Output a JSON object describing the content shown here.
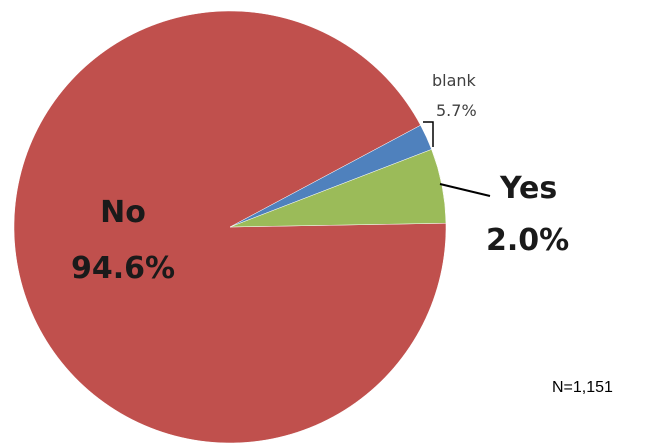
{
  "chart_data": {
    "type": "pie",
    "slices": [
      {
        "label": "No",
        "value_label": "94.6%",
        "value": 94.6,
        "color": "#c0504d"
      },
      {
        "label": "Yes",
        "value_label": "2.0%",
        "value": 2.0,
        "color": "#4f81bd"
      },
      {
        "label": "blank",
        "value_label": "5.7%",
        "value": 5.7,
        "color": "#9bbb59"
      }
    ],
    "annotations": [
      "N=1,151"
    ],
    "legend": "none"
  }
}
